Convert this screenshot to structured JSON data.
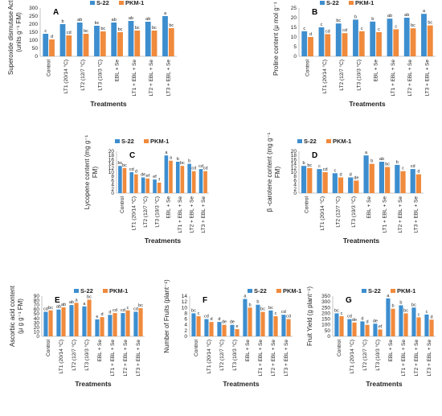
{
  "colors": {
    "s22": "#3d8ecf",
    "pkm1": "#f08a3c",
    "axis": "#b5b5b5"
  },
  "legend": {
    "s22": "S-22",
    "pkm1": "PKM-1"
  },
  "categories": [
    "Control",
    "LT1 (20/14 °C)",
    "LT2 (12/7 °C)",
    "LT3 (10/3 °C)",
    "EBL + Se",
    "LT1 + EBL + Se",
    "LT2 + EBL + Se",
    "LT3 + EBL + Se"
  ],
  "chart_data": [
    {
      "panel": "A",
      "type": "bar",
      "ylabel_line1": "Superoxide dismutase Activity",
      "ylabel_line2": "(units g⁻¹ FM)",
      "xlabel": "Treatments",
      "ylim": [
        0,
        300
      ],
      "yticks": [
        0,
        50,
        100,
        150,
        200,
        250,
        300
      ],
      "categories": [
        "Control",
        "LT1 (20/14 °C)",
        "LT2 (12/7 °C)",
        "LT3 (10/3 °C)",
        "EBL + Se",
        "LT1 + EBL + Se",
        "LT2 + EBL + Se",
        "LT3 + EBL + Se"
      ],
      "series": [
        {
          "name": "S-22",
          "values": [
            140,
            200,
            210,
            190,
            210,
            220,
            215,
            250
          ],
          "letters": [
            "c",
            "b",
            "ab",
            "bc",
            "ab",
            "ab",
            "ab",
            "a"
          ]
        },
        {
          "name": "PKM-1",
          "values": [
            105,
            130,
            140,
            155,
            150,
            160,
            160,
            175
          ],
          "letters": [
            "d",
            "cd",
            "bc",
            "bc",
            "bc",
            "bc",
            "bc",
            "bc"
          ]
        }
      ]
    },
    {
      "panel": "B",
      "type": "bar",
      "ylabel_line1": "Proline content (μ mol g⁻¹ FM)",
      "ylabel_line2": "",
      "xlabel": "Treatments",
      "ylim": [
        0,
        25
      ],
      "yticks": [
        0,
        5,
        10,
        15,
        20,
        25
      ],
      "categories": [
        "Control",
        "LT1 (20/14 °C)",
        "LT2 (12/7 °C)",
        "LT3 (10/3 °C)",
        "EBL + Se",
        "LT1 + EBL + Se",
        "LT2 + EBL + Se",
        "LT3 + EBL + Se"
      ],
      "series": [
        {
          "name": "S-22",
          "values": [
            13,
            15,
            17,
            19,
            18,
            19.5,
            20,
            22
          ],
          "letters": [
            "c",
            "c",
            "bc",
            "b",
            "b",
            "ab",
            "ab",
            "a"
          ]
        },
        {
          "name": "PKM-1",
          "values": [
            10,
            11.5,
            12,
            13,
            12.5,
            14,
            14.5,
            16
          ],
          "letters": [
            "d",
            "cd",
            "cd",
            "c",
            "c",
            "c",
            "bc",
            "bc"
          ]
        }
      ]
    },
    {
      "panel": "C",
      "type": "bar",
      "ylabel_line1": "Lycopene content (mg g⁻¹",
      "ylabel_line2": "FM)",
      "xlabel": "Treatments",
      "ylim": [
        0,
        20
      ],
      "yticks": [
        0,
        2,
        4,
        6,
        8,
        10,
        12,
        14,
        16,
        18,
        20
      ],
      "categories": [
        "Control",
        "LT1 (20/14 °C)",
        "LT2 (12/7 °C)",
        "LT3 (10/3 °C)",
        "EBL + Se",
        "LT1 + EBL + Se",
        "LT2 + EBL + Se",
        "LT3 + EBL + Se"
      ],
      "series": [
        {
          "name": "S-22",
          "values": [
            13,
            10,
            7.5,
            6.5,
            18,
            15,
            14,
            11.5
          ],
          "letters": [
            "bc",
            "cd",
            "de",
            "ef",
            "a",
            "b",
            "b",
            "cd"
          ]
        },
        {
          "name": "PKM-1",
          "values": [
            12,
            9,
            7,
            5,
            15.5,
            13,
            10.5,
            10.5
          ],
          "letters": [
            "bc",
            "d",
            "ef",
            "f",
            "a",
            "bc",
            "cd",
            "cd"
          ]
        }
      ]
    },
    {
      "panel": "D",
      "type": "bar",
      "ylabel_line1": "β -carotene content (mg g⁻¹",
      "ylabel_line2": "FM)",
      "xlabel": "Treatments",
      "ylim": [
        0,
        20
      ],
      "yticks": [
        0,
        2,
        4,
        6,
        8,
        10,
        12,
        14,
        16,
        18,
        20
      ],
      "categories": [
        "Control",
        "LT1 (20/14 °C)",
        "LT2 (12/7 °C)",
        "LT3 (10/3 °C)",
        "EBL + Se",
        "LT1 + EBL + Se",
        "LT2 + EBL + Se",
        "LT3 + EBL + Se"
      ],
      "series": [
        {
          "name": "S-22",
          "values": [
            13,
            11.5,
            9.5,
            7.5,
            18,
            15,
            13.5,
            11.5
          ],
          "letters": [
            "b",
            "c",
            "c",
            "d",
            "a",
            "ab",
            "b",
            "cd"
          ]
        },
        {
          "name": "PKM-1",
          "values": [
            12,
            10,
            7.5,
            6,
            14,
            12.5,
            10.5,
            9
          ],
          "letters": [
            "bc",
            "cd",
            "d",
            "de",
            "b",
            "bc",
            "c",
            "d"
          ]
        }
      ]
    },
    {
      "panel": "E",
      "type": "bar",
      "ylabel_line1": "Ascorbic  acid content",
      "ylabel_line2": "(μ g g⁻¹ FM)",
      "xlabel": "Treatments",
      "ylim": [
        0,
        90
      ],
      "yticks": [
        0,
        10,
        20,
        30,
        40,
        50,
        60,
        70,
        80,
        90
      ],
      "categories": [
        "Control",
        "LT1 (20/14 °C)",
        "LT2 (12/7 °C)",
        "LT3 (10/3 °C)",
        "EBL + Se",
        "LT1 + EBL + Se",
        "LT2 + EBL + Se",
        "LT3 + EBL + Se"
      ],
      "series": [
        {
          "name": "S-22",
          "values": [
            55,
            60,
            70,
            67,
            38,
            48,
            52,
            55
          ],
          "letters": [
            "cd",
            "ab",
            "ab",
            "a",
            "e",
            "d",
            "cd",
            "cd"
          ]
        },
        {
          "name": "PKM-1",
          "values": [
            58,
            65,
            75,
            82,
            43,
            52,
            58,
            63
          ],
          "letters": [
            "bc",
            "ab",
            "a",
            "bc",
            "d",
            "cd",
            "c",
            "bc"
          ]
        }
      ]
    },
    {
      "panel": "F",
      "type": "bar",
      "ylabel_line1": "Number of Fruits (plant⁻¹)",
      "ylabel_line2": "",
      "xlabel": "Treatments",
      "ylim": [
        0,
        14
      ],
      "yticks": [
        0,
        2,
        4,
        6,
        8,
        10,
        12,
        14
      ],
      "categories": [
        "Control",
        "LT1 (20/14 °C)",
        "LT2 (12/7 °C)",
        "LT3 (10/3 °C)",
        "EBL + Se",
        "LT1 + EBL + Se",
        "LT2 + EBL + Se",
        "LT3 + EBL + Se"
      ],
      "series": [
        {
          "name": "S-22",
          "values": [
            8,
            6,
            5,
            4,
            13,
            11,
            9,
            7.5
          ],
          "letters": [
            "bc",
            "cd",
            "d",
            "de",
            "a",
            "b",
            "bc",
            "cd"
          ]
        },
        {
          "name": "PKM-1",
          "values": [
            7,
            5,
            4,
            2.5,
            10,
            8.5,
            7,
            6
          ],
          "letters": [
            "c",
            "d",
            "de",
            "e",
            "b",
            "bc",
            "c",
            "cd"
          ]
        }
      ]
    },
    {
      "panel": "G",
      "type": "bar",
      "ylabel_line1": "Fruit Yield (g plant⁻¹)",
      "ylabel_line2": "",
      "xlabel": "Treatments",
      "ylim": [
        0,
        350
      ],
      "yticks": [
        0,
        50,
        100,
        150,
        200,
        250,
        300,
        350
      ],
      "categories": [
        "Control",
        "LT1 (20/14 °C)",
        "LT2 (12/7 °C)",
        "LT3 (10/3 °C)",
        "EBL + Se",
        "LT1 + EBL + Se",
        "LT2 + EBL + Se",
        "LT3 + EBL + Se"
      ],
      "series": [
        {
          "name": "S-22",
          "values": [
            200,
            150,
            130,
            110,
            330,
            270,
            250,
            190
          ],
          "letters": [
            "bc",
            "cd",
            "d",
            "de",
            "a",
            "b",
            "bc",
            "c"
          ]
        },
        {
          "name": "PKM-1",
          "values": [
            175,
            120,
            100,
            60,
            240,
            200,
            165,
            145
          ],
          "letters": [
            "c",
            "de",
            "d",
            "ef",
            "b",
            "bc",
            "c",
            "d"
          ]
        }
      ]
    }
  ]
}
